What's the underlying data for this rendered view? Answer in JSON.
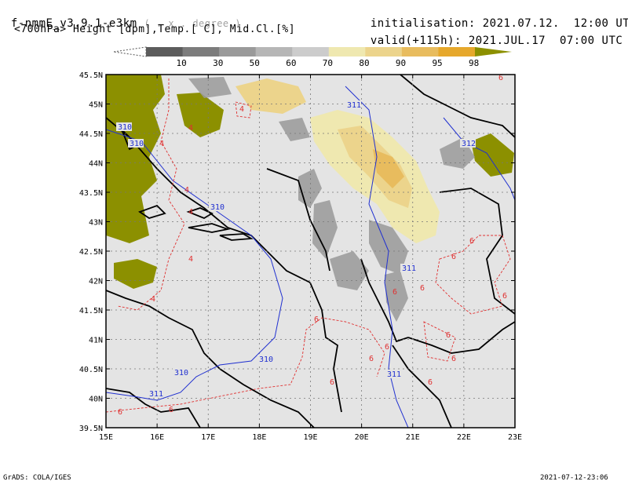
{
  "header": {
    "model": "f-nmmE_v3.9.1-e3km",
    "units_note": "( . x . degree )",
    "fields": "<700hPa> Height [dpm],Temp.[ C], Mid.Cl.[%]",
    "init_label": "initialisation:",
    "init_value": "2021.07.12.  12:00 UTC",
    "valid_label": "valid(+115h):",
    "valid_value": "2021.JUL.17  07:00 UTC"
  },
  "colorbar": {
    "ticks": [
      "10",
      "30",
      "50",
      "60",
      "70",
      "80",
      "90",
      "95",
      "98"
    ],
    "colors": [
      "#5c5c5c",
      "#7c7c7c",
      "#9a9a9a",
      "#b6b6b6",
      "#cccccc",
      "#efe8b0",
      "#ecd48c",
      "#e8bc5e",
      "#e6a82c",
      "#8c9000"
    ]
  },
  "axes": {
    "lat_labels": [
      "45.5N",
      "45N",
      "44.5N",
      "44N",
      "43.5N",
      "43N",
      "42.5N",
      "42N",
      "41.5N",
      "41N",
      "40.5N",
      "40N",
      "39.5N"
    ],
    "lon_labels": [
      "15E",
      "16E",
      "17E",
      "18E",
      "19E",
      "20E",
      "21E",
      "22E",
      "23E"
    ],
    "lat_range": [
      39.5,
      45.5
    ],
    "lon_range": [
      15,
      23
    ]
  },
  "contours": {
    "height_labels": [
      "310",
      "310",
      "310",
      "311",
      "312",
      "310",
      "310",
      "311",
      "311",
      "311"
    ],
    "temp_labels": [
      "4",
      "4",
      "4",
      "4",
      "4",
      "4",
      "4",
      "6",
      "6",
      "6",
      "6",
      "6",
      "6",
      "6",
      "6",
      "6",
      "6",
      "6",
      "6",
      "6",
      "6",
      "6"
    ]
  },
  "footer": {
    "left": "GrADS: COLA/IGES",
    "right": "2021-07-12-23:06"
  }
}
